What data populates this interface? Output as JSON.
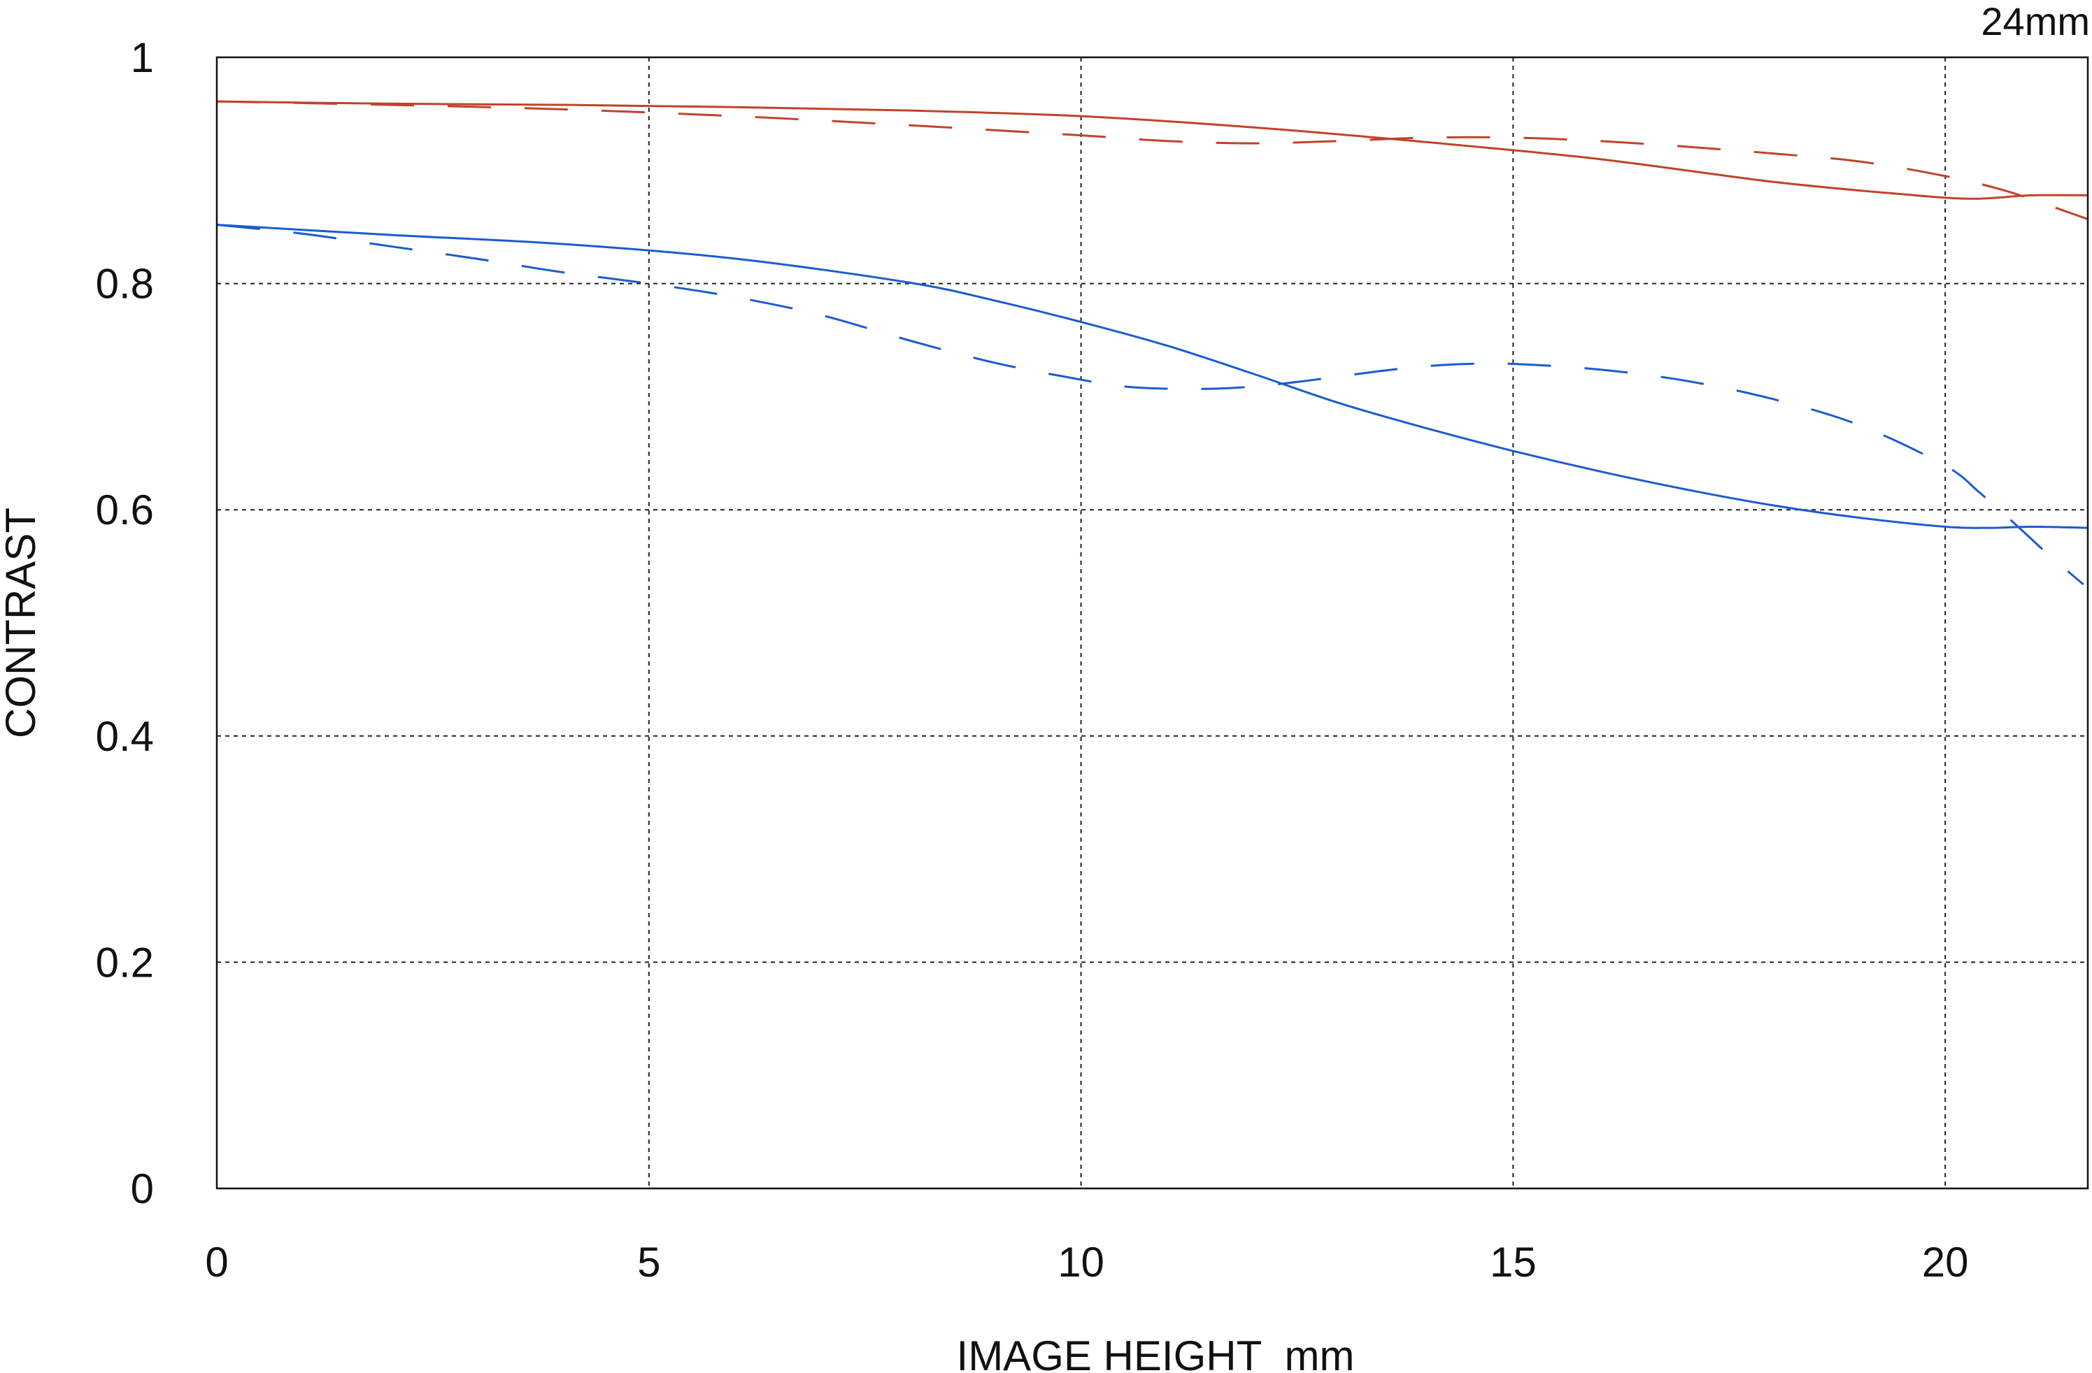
{
  "chart_data": {
    "type": "line",
    "annotation": "24mm",
    "xlabel": "IMAGE HEIGHT  mm",
    "ylabel": "CONTRAST",
    "xlim": [
      0,
      21.65
    ],
    "ylim": [
      0,
      1
    ],
    "xticks": [
      0,
      5,
      10,
      15,
      20
    ],
    "xtick_labels": [
      "0",
      "5",
      "10",
      "15",
      "20"
    ],
    "yticks": [
      0,
      0.2,
      0.4,
      0.6,
      0.8,
      1
    ],
    "ytick_labels": [
      "0",
      "0.2",
      "0.4",
      "0.6",
      "0.8",
      "1"
    ],
    "grid": true,
    "grid_style": "dotted",
    "series": [
      {
        "color": "#c0432a",
        "dash": "solid",
        "x": [
          0,
          2,
          4,
          6,
          8,
          10,
          12,
          14,
          16,
          18,
          19.5,
          20.3,
          21,
          21.65
        ],
        "y": [
          0.961,
          0.959,
          0.958,
          0.956,
          0.953,
          0.948,
          0.938,
          0.925,
          0.91,
          0.89,
          0.879,
          0.875,
          0.878,
          0.878
        ]
      },
      {
        "color": "#c0432a",
        "dash": "dashed",
        "x": [
          0,
          2,
          4,
          6,
          8,
          10,
          11,
          12,
          13,
          14,
          15,
          16,
          17,
          18,
          19,
          20,
          20.7,
          21.2,
          21.65
        ],
        "y": [
          0.961,
          0.958,
          0.954,
          0.948,
          0.94,
          0.931,
          0.926,
          0.924,
          0.926,
          0.929,
          0.929,
          0.926,
          0.921,
          0.915,
          0.908,
          0.895,
          0.882,
          0.869,
          0.857
        ]
      },
      {
        "color": "#1a5cd0",
        "dash": "solid",
        "x": [
          0,
          2,
          4,
          6,
          8,
          9,
          10,
          11,
          12,
          13,
          14,
          15,
          16,
          17,
          18,
          19,
          20,
          20.5,
          21,
          21.65
        ],
        "y": [
          0.852,
          0.843,
          0.835,
          0.822,
          0.801,
          0.785,
          0.766,
          0.745,
          0.72,
          0.694,
          0.672,
          0.652,
          0.634,
          0.618,
          0.604,
          0.593,
          0.585,
          0.584,
          0.585,
          0.584
        ]
      },
      {
        "color": "#1a5cd0",
        "dash": "dashed",
        "x": [
          0,
          1,
          2,
          3,
          4,
          5,
          6,
          7,
          8,
          9,
          10,
          10.5,
          11,
          11.5,
          12,
          12.5,
          13,
          13.5,
          14,
          14.5,
          15,
          16,
          17,
          18,
          19,
          20,
          20.4,
          20.8,
          21.2,
          21.6
        ],
        "y": [
          0.852,
          0.844,
          0.833,
          0.822,
          0.81,
          0.8,
          0.788,
          0.772,
          0.75,
          0.73,
          0.715,
          0.709,
          0.707,
          0.707,
          0.709,
          0.713,
          0.718,
          0.723,
          0.727,
          0.729,
          0.729,
          0.724,
          0.714,
          0.698,
          0.675,
          0.639,
          0.615,
          0.588,
          0.56,
          0.534
        ]
      }
    ]
  }
}
